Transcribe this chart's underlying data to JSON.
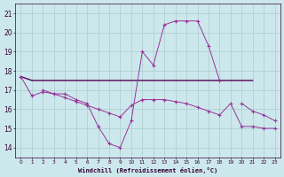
{
  "background_color": "#cce8ec",
  "grid_color": "#aacccc",
  "line_color": "#993399",
  "flat_line_color": "#550055",
  "xlabel": "Windchill (Refroidissement éolien,°C)",
  "ylim": [
    13.5,
    21.5
  ],
  "yticks": [
    14,
    15,
    16,
    17,
    18,
    19,
    20,
    21
  ],
  "x_hours": [
    0,
    1,
    2,
    3,
    4,
    5,
    6,
    7,
    8,
    9,
    10,
    11,
    12,
    13,
    14,
    15,
    16,
    17,
    18,
    19,
    20,
    21,
    22,
    23
  ],
  "series_temp": [
    17.7,
    16.7,
    16.9,
    16.8,
    16.8,
    16.5,
    16.3,
    15.1,
    14.2,
    14.0,
    15.4,
    19.0,
    18.3,
    20.4,
    20.6,
    20.6,
    20.6,
    19.3,
    17.5,
    null,
    null,
    null,
    null,
    null
  ],
  "series_flat": [
    17.7,
    17.5,
    17.5,
    17.5,
    17.5,
    17.5,
    17.5,
    17.5,
    17.5,
    17.5,
    17.5,
    17.5,
    17.5,
    17.5,
    17.5,
    17.5,
    17.5,
    17.5,
    17.5,
    17.5,
    17.5,
    17.5,
    null,
    null
  ],
  "series_decline": [
    null,
    null,
    17.0,
    16.8,
    16.6,
    16.4,
    16.2,
    16.0,
    15.8,
    15.6,
    16.2,
    16.5,
    16.5,
    16.5,
    16.4,
    16.3,
    16.1,
    15.9,
    15.7,
    16.3,
    15.1,
    15.1,
    15.0,
    15.0
  ],
  "series_steep": [
    null,
    null,
    null,
    null,
    null,
    null,
    null,
    null,
    null,
    null,
    null,
    null,
    null,
    null,
    null,
    null,
    null,
    null,
    null,
    null,
    16.3,
    15.9,
    15.7,
    15.4
  ]
}
